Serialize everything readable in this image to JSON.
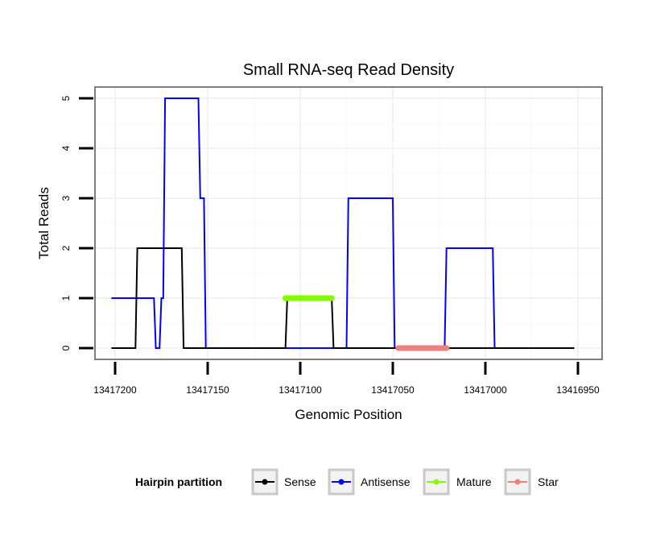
{
  "chart_data": {
    "type": "line",
    "title": "Small RNA-seq Read Density",
    "xlabel": "Genomic Position",
    "ylabel": "Total Reads",
    "x_reversed": true,
    "xlim": [
      13417203,
      13416951
    ],
    "ylim": [
      0,
      5
    ],
    "x_ticks": [
      13417200,
      13417150,
      13417100,
      13417050,
      13417000,
      13416950
    ],
    "x_tick_labels": [
      "13417200",
      "13417150",
      "13417100",
      "13417050",
      "13417000",
      "13416950"
    ],
    "y_ticks": [
      0,
      1,
      2,
      3,
      4,
      5
    ],
    "y_tick_labels": [
      "0",
      "1",
      "2",
      "3",
      "4",
      "5"
    ],
    "grid": true,
    "legend": {
      "title": "Hairpin partition",
      "position": "bottom",
      "entries": [
        "Sense",
        "Antisense",
        "Mature",
        "Star"
      ]
    },
    "series": [
      {
        "name": "Sense",
        "color": "#000000",
        "style": "line",
        "x": [
          13417202,
          13417189,
          13417188,
          13417164,
          13417163,
          13417108,
          13417107,
          13417083,
          13417082,
          13416952
        ],
        "y": [
          0,
          0,
          2,
          2,
          0,
          0,
          1,
          1,
          0,
          0
        ]
      },
      {
        "name": "Antisense",
        "color": "#0000ff",
        "style": "line",
        "x": [
          13417202,
          13417179,
          13417178,
          13417176,
          13417175,
          13417174,
          13417173,
          13417155,
          13417154,
          13417152,
          13417151,
          13417108,
          13417075,
          13417074,
          13417050,
          13417049,
          13417022,
          13417021,
          13416996,
          13416995,
          13416952
        ],
        "y": [
          1,
          1,
          0,
          0,
          1,
          1,
          5,
          5,
          3,
          3,
          0,
          0,
          0,
          3,
          3,
          0,
          0,
          2,
          2,
          0,
          0
        ]
      },
      {
        "name": "Mature",
        "color": "#7fff00",
        "style": "dots",
        "x_range": [
          13417108,
          13417083
        ],
        "y": 1
      },
      {
        "name": "Star",
        "color": "#f08080",
        "style": "dots",
        "x_range": [
          13417047,
          13417021
        ],
        "y": 0
      }
    ]
  }
}
